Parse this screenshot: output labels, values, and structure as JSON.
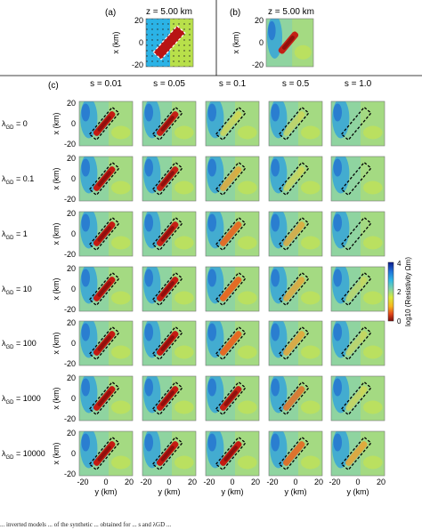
{
  "top": {
    "a": {
      "letter": "(a)",
      "title": "z = 5.00 km"
    },
    "b": {
      "letter": "(b)",
      "title": "z = 5.00 km"
    }
  },
  "grid": {
    "letter": "(c)",
    "columns": [
      "s = 0.01",
      "s = 0.05",
      "s = 0.1",
      "s = 0.5",
      "s = 1.0"
    ],
    "row_prefix": "λ",
    "row_subscript": "GD",
    "rows": [
      {
        "eq": " = 0",
        "strength": [
          1.0,
          0.95,
          0.35,
          0.22,
          0.0
        ]
      },
      {
        "eq": " = 0.1",
        "strength": [
          1.0,
          0.95,
          0.5,
          0.3,
          0.0
        ]
      },
      {
        "eq": " = 1",
        "strength": [
          1.0,
          0.95,
          0.85,
          0.45,
          0.0
        ]
      },
      {
        "eq": " = 10",
        "strength": [
          1.0,
          1.0,
          0.9,
          0.5,
          0.1
        ]
      },
      {
        "eq": " = 100",
        "strength": [
          1.0,
          1.0,
          0.9,
          0.55,
          0.15
        ]
      },
      {
        "eq": " = 1000",
        "strength": [
          1.0,
          1.0,
          0.95,
          0.65,
          0.3
        ]
      },
      {
        "eq": " = 10000",
        "strength": [
          1.0,
          1.0,
          1.0,
          0.8,
          0.6
        ]
      }
    ]
  },
  "axes": {
    "xlabel": "y (km)",
    "ylabel": "x (km)",
    "xticks": [
      "-20",
      "0",
      "20"
    ],
    "yticks": [
      "20",
      "0",
      "-20"
    ]
  },
  "colorbar": {
    "label": "log10 (Resistivity Ωm)",
    "ticks": [
      "4",
      "2",
      "0"
    ],
    "colors": [
      "#0b1a8c",
      "#1f6fd8",
      "#2fb6e6",
      "#7dd3a8",
      "#d9ea3a",
      "#f6b51f",
      "#e2461b",
      "#7a0b0b"
    ]
  },
  "caption": "... inverted models ... of the synthetic ... obtained for ... s and λGD ..."
}
